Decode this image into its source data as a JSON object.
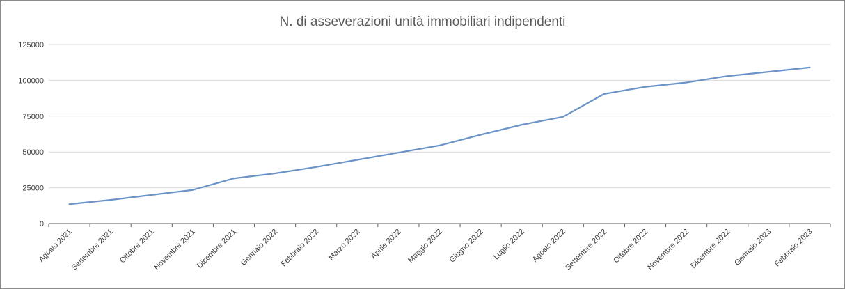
{
  "chart_data": {
    "type": "line",
    "title": "N. di asseverazioni unità immobiliari indipendenti",
    "xlabel": "",
    "ylabel": "",
    "categories": [
      "Agosto 2021",
      "Settembre 2021",
      "Ottobre 2021",
      "Novembre 2021",
      "Dicembre 2021",
      "Gennaio 2022",
      "Febbraio 2022",
      "Marzo 2022",
      "Aprile 2022",
      "Maggio 2022",
      "Giugno 2022",
      "Luglio 2022",
      "Agosto 2022",
      "Settembre 2022",
      "Ottobre 2022",
      "Novembre 2022",
      "Dicembre 2022",
      "Gennaio 2023",
      "Febbraio 2023"
    ],
    "values": [
      13500,
      16500,
      20000,
      23500,
      31500,
      35000,
      39500,
      44500,
      49500,
      54500,
      62000,
      69000,
      74500,
      90500,
      95500,
      98500,
      103000,
      106000,
      109000
    ],
    "ylim": [
      0,
      125000
    ],
    "yticks": [
      "0",
      "25000",
      "50000",
      "75000",
      "100000",
      "125000"
    ],
    "grid": true,
    "legend": "none",
    "line_color": "#6a93c8",
    "grid_color": "#d9d9d9",
    "axis_color": "#595959"
  }
}
